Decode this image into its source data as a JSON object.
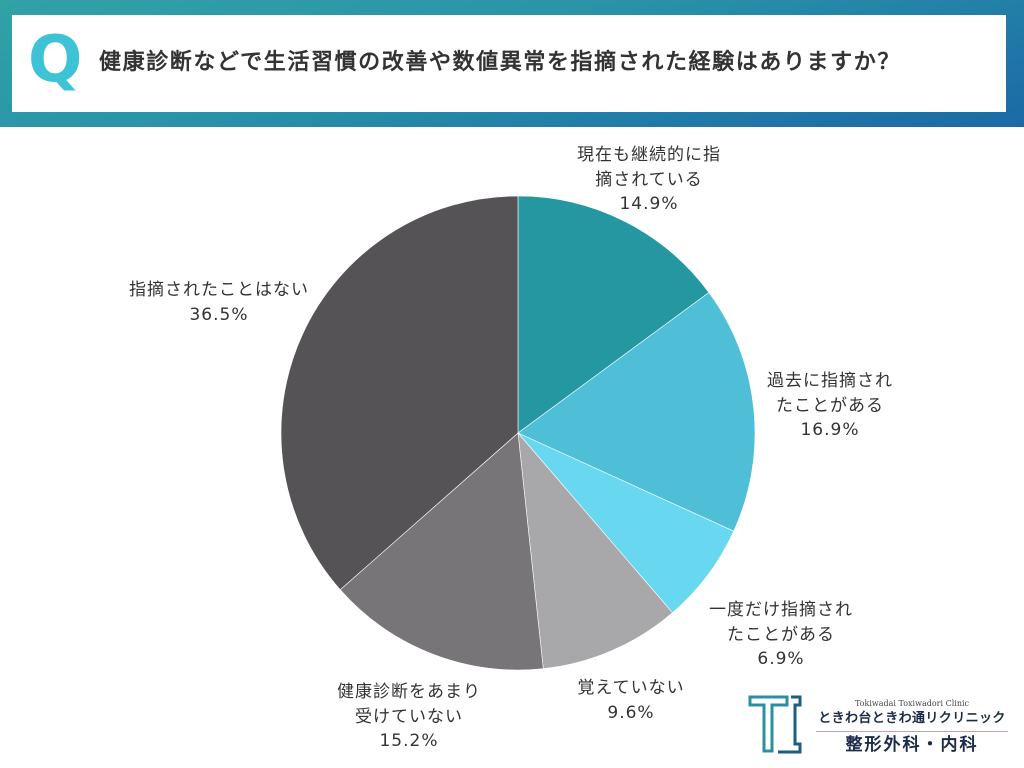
{
  "header": {
    "q_mark": "Q",
    "accent_color": "#3ec3d6",
    "band_colors": [
      "#31a2a6",
      "#2a94a8",
      "#1e73a7",
      "#1b6aa6"
    ]
  },
  "chart_data": {
    "type": "pie",
    "title": "健康診断などで生活習慣の改善や数値異常を指摘された経験はありますか？",
    "categories": [
      "現在も継続的に指摘されている",
      "過去に指摘されたことがある",
      "一度だけ指摘されたことがある",
      "覚えていない",
      "健康診断をあまり受けていない",
      "指摘されたことはない"
    ],
    "values": [
      14.9,
      16.9,
      6.9,
      9.6,
      15.2,
      36.5
    ],
    "value_labels": [
      "14.9%",
      "16.9%",
      "6.9%",
      "9.6%",
      "15.2%",
      "36.5%"
    ],
    "colors": [
      "#2497a0",
      "#4ebfd6",
      "#67d8ef",
      "#a8a7aa",
      "#777578",
      "#555356"
    ]
  },
  "logo": {
    "icon": "tc-monogram-icon",
    "name_en": "Tokiwadai Toxiwadori Clinic",
    "name_jp": "ときわ台ときわ通リクリニック",
    "departments": "整形外科・内科",
    "colors": [
      "#2a8fa0",
      "#1d5e80"
    ]
  }
}
